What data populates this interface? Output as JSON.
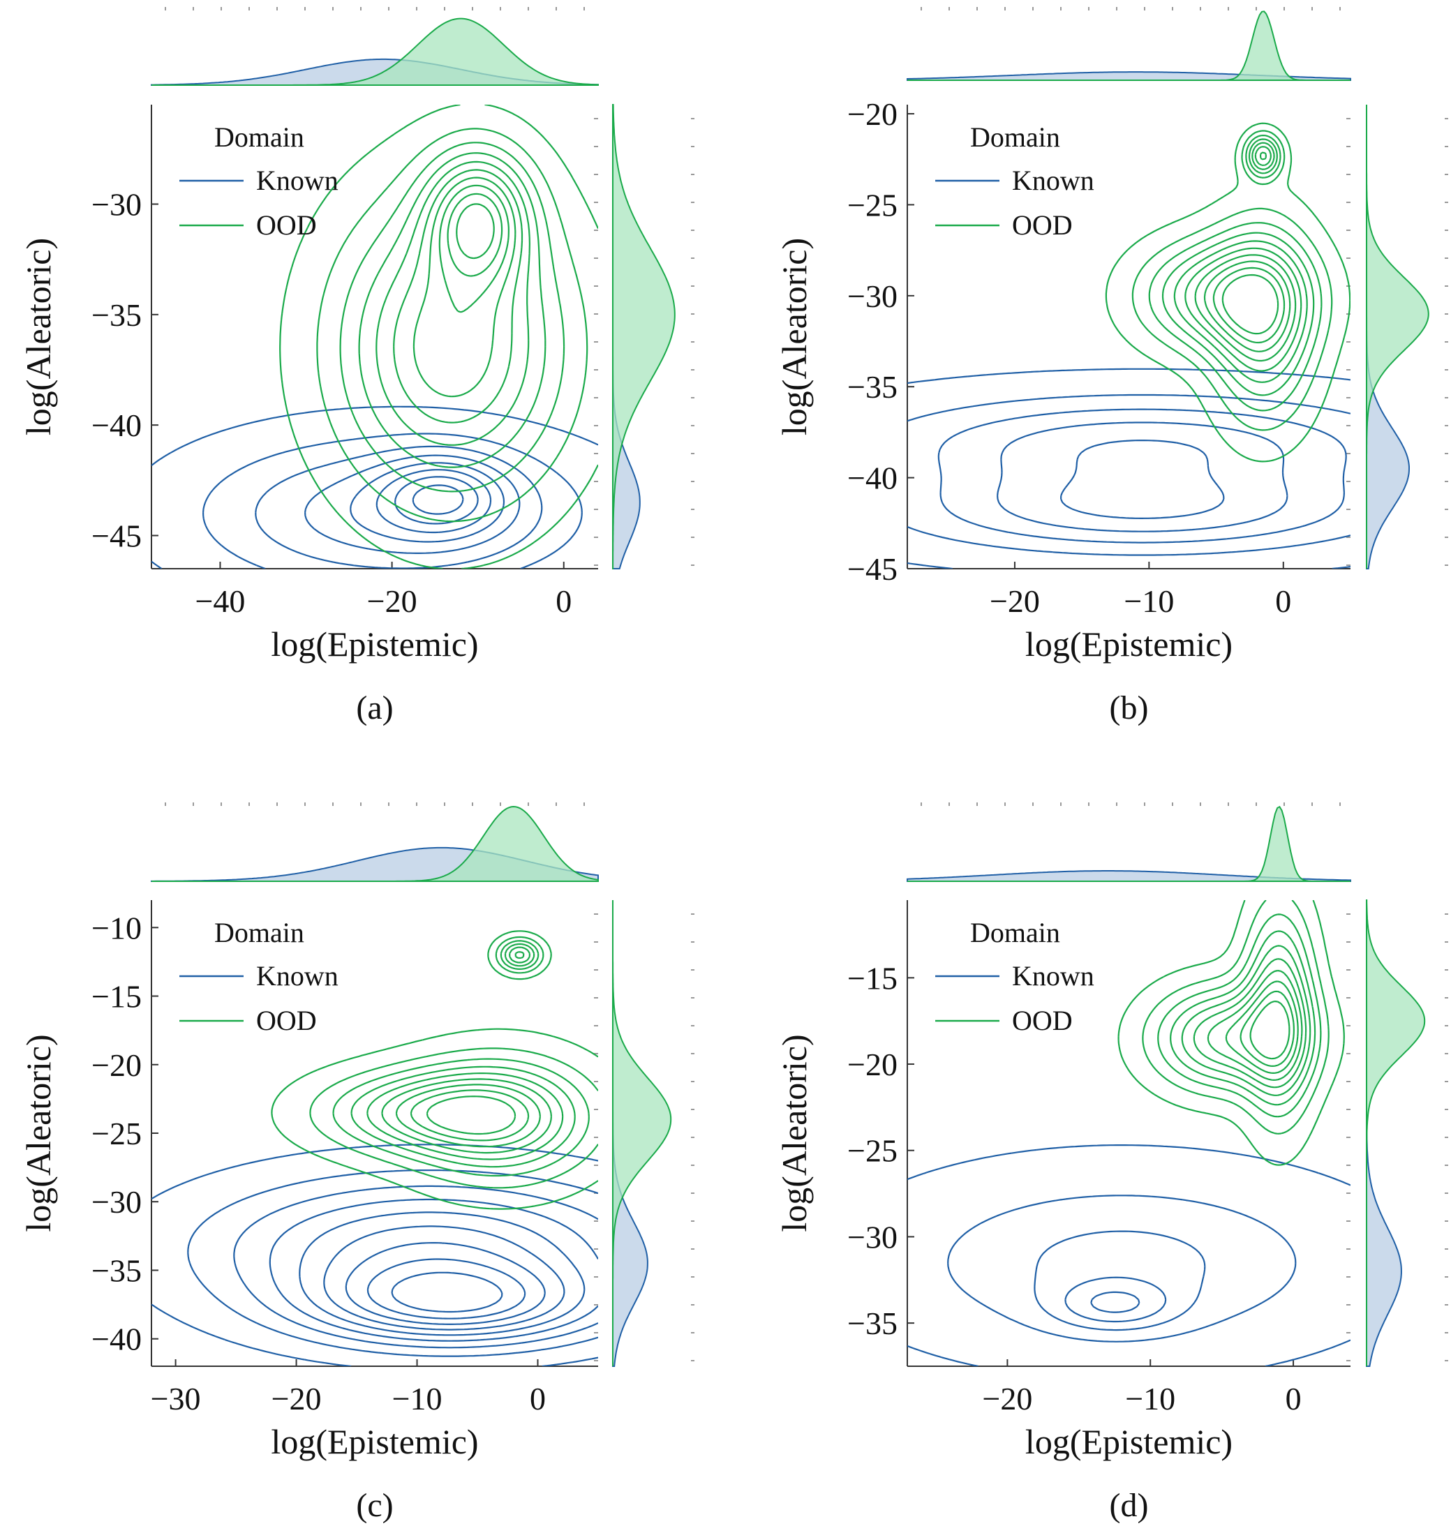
{
  "colors": {
    "known": "#1f5fa6",
    "ood": "#1aaa4a",
    "known_fill": "#b9cde4",
    "ood_fill": "#a9e6bf",
    "axis": "#555555"
  },
  "legend": {
    "title": "Domain",
    "items": [
      "Known",
      "OOD"
    ]
  },
  "chart_data": [
    {
      "type": "contour",
      "caption": "(a)",
      "xlabel": "log(Epistemic)",
      "ylabel": "log(Aleatoric)",
      "xlim": [
        -48,
        4
      ],
      "ylim": [
        -46.5,
        -25.5
      ],
      "xticks": [
        -40,
        -20,
        0
      ],
      "yticks": [
        -45,
        -40,
        -35,
        -30
      ],
      "legend_position": "top-left",
      "series": [
        {
          "name": "Known",
          "blobs": [
            {
              "cx": -20,
              "cy": -44.0,
              "rx": 15,
              "ry": 2.3
            },
            {
              "cx": -14,
              "cy": -43.2,
              "rx": 5,
              "ry": 1.2
            }
          ],
          "levels": 8,
          "marginal_x": {
            "mean": -21,
            "sd": 9,
            "peak": 0.35
          },
          "marginal_y": {
            "mean": -43.5,
            "sd": 1.8,
            "peak": 0.35
          }
        },
        {
          "name": "OOD",
          "blobs": [
            {
              "cx": -13,
              "cy": -36.5,
              "rx": 9,
              "ry": 4.5
            },
            {
              "cx": -10,
              "cy": -30.6,
              "rx": 4,
              "ry": 2
            }
          ],
          "levels": 10,
          "marginal_x": {
            "mean": -12,
            "sd": 5,
            "peak": 0.9
          },
          "marginal_y": {
            "mean": -35,
            "sd": 3,
            "peak": 0.8
          }
        }
      ]
    },
    {
      "type": "contour",
      "caption": "(b)",
      "xlabel": "log(Epistemic)",
      "ylabel": "log(Aleatoric)",
      "xlim": [
        -28,
        5
      ],
      "ylim": [
        -45,
        -19.5
      ],
      "xticks": [
        -20,
        -10,
        0
      ],
      "yticks": [
        -45,
        -40,
        -35,
        -30,
        -25,
        -20
      ],
      "legend_position": "top-left",
      "series": [
        {
          "name": "Known",
          "blobs": [
            {
              "cx": -10.5,
              "cy": -38.2,
              "rx": 13,
              "ry": 1.8
            },
            {
              "cx": -10.5,
              "cy": -41.8,
              "rx": 12,
              "ry": 1.6
            }
          ],
          "levels": 5,
          "marginal_x": {
            "mean": -11,
            "sd": 9,
            "peak": 0.12
          },
          "marginal_y": {
            "mean": -39.5,
            "sd": 2.2,
            "peak": 0.55
          }
        },
        {
          "name": "OOD",
          "blobs": [
            {
              "cx": -1.5,
              "cy": -31.5,
              "rx": 2.5,
              "ry": 3.5
            },
            {
              "cx": -4.5,
              "cy": -30.0,
              "rx": 4,
              "ry": 2
            },
            {
              "cx": -1.5,
              "cy": -22.3,
              "rx": 0.9,
              "ry": 0.8
            }
          ],
          "levels": 10,
          "marginal_x": {
            "mean": -1.5,
            "sd": 0.8,
            "peak": 1.0
          },
          "marginal_y": {
            "mean": -31,
            "sd": 2,
            "peak": 0.8
          }
        }
      ]
    },
    {
      "type": "contour",
      "caption": "(c)",
      "xlabel": "log(Epistemic)",
      "ylabel": "log(Aleatoric)",
      "xlim": [
        -32,
        5
      ],
      "ylim": [
        -42,
        -8
      ],
      "xticks": [
        -30,
        -20,
        -10,
        0
      ],
      "yticks": [
        -40,
        -35,
        -30,
        -25,
        -20,
        -15,
        -10
      ],
      "legend_position": "top-left",
      "series": [
        {
          "name": "Known",
          "blobs": [
            {
              "cx": -9,
              "cy": -33.5,
              "rx": 12,
              "ry": 3.5
            },
            {
              "cx": -7,
              "cy": -37.5,
              "rx": 8,
              "ry": 2
            }
          ],
          "levels": 9,
          "marginal_x": {
            "mean": -8,
            "sd": 7,
            "peak": 0.45
          },
          "marginal_y": {
            "mean": -34.5,
            "sd": 3,
            "peak": 0.45
          }
        },
        {
          "name": "OOD",
          "blobs": [
            {
              "cx": -3,
              "cy": -24,
              "rx": 5,
              "ry": 3
            },
            {
              "cx": -9,
              "cy": -23.5,
              "rx": 6,
              "ry": 2
            },
            {
              "cx": -1.5,
              "cy": -12,
              "rx": 1.2,
              "ry": 0.8
            }
          ],
          "levels": 9,
          "marginal_x": {
            "mean": -2,
            "sd": 2.5,
            "peak": 1.0
          },
          "marginal_y": {
            "mean": -24,
            "sd": 3,
            "peak": 0.75
          }
        }
      ]
    },
    {
      "type": "contour",
      "caption": "(d)",
      "xlabel": "log(Epistemic)",
      "ylabel": "log(Aleatoric)",
      "xlim": [
        -27,
        4
      ],
      "ylim": [
        -37.5,
        -10.5
      ],
      "xticks": [
        -20,
        -10,
        0
      ],
      "yticks": [
        -35,
        -30,
        -25,
        -20,
        -15
      ],
      "legend_position": "top-left",
      "series": [
        {
          "name": "Known",
          "blobs": [
            {
              "cx": -12,
              "cy": -31.5,
              "rx": 10,
              "ry": 3.2
            },
            {
              "cx": -12.5,
              "cy": -34,
              "rx": 3,
              "ry": 1
            }
          ],
          "levels": 5,
          "marginal_x": {
            "mean": -13,
            "sd": 8,
            "peak": 0.14
          },
          "marginal_y": {
            "mean": -32,
            "sd": 2.5,
            "peak": 0.45
          }
        },
        {
          "name": "OOD",
          "blobs": [
            {
              "cx": -1,
              "cy": -17,
              "rx": 1.6,
              "ry": 4
            },
            {
              "cx": -4.5,
              "cy": -18.5,
              "rx": 3.5,
              "ry": 2
            }
          ],
          "levels": 10,
          "marginal_x": {
            "mean": -1,
            "sd": 0.6,
            "peak": 1.0
          },
          "marginal_y": {
            "mean": -17.5,
            "sd": 2,
            "peak": 0.75
          }
        }
      ]
    }
  ]
}
